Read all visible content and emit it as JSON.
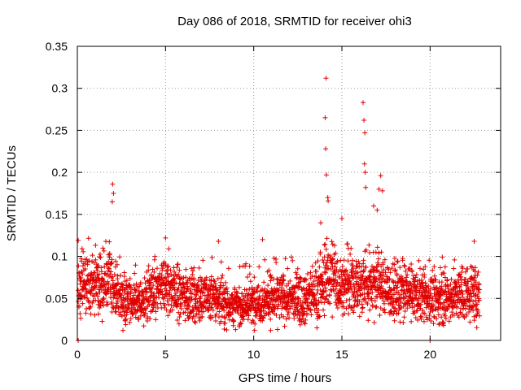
{
  "chart_data": {
    "type": "scatter",
    "title": "Day 086 of 2018, SRMTID for receiver ohi3",
    "xlabel": "GPS time / hours",
    "ylabel": "SRMTID / TECUs",
    "xlim": [
      0,
      24
    ],
    "ylim": [
      0,
      0.35
    ],
    "xticks": [
      0,
      5,
      10,
      15,
      20
    ],
    "xtick_labels": [
      "0",
      "5",
      "10",
      "15",
      "20"
    ],
    "yticks": [
      0,
      0.05,
      0.1,
      0.15,
      0.2,
      0.25,
      0.3,
      0.35
    ],
    "ytick_labels": [
      "0",
      "0.05",
      "0.1",
      "0.15",
      "0.2",
      "0.25",
      "0.3",
      "0.35"
    ],
    "grid": true,
    "marker": "+",
    "color": "#e00000",
    "sample_step_hours": 0.0167,
    "x_range": [
      0.05,
      22.8
    ],
    "baseline_level_by_hour": [
      [
        0.0,
        0.07
      ],
      [
        1.0,
        0.065
      ],
      [
        1.8,
        0.07
      ],
      [
        2.5,
        0.05
      ],
      [
        3.5,
        0.045
      ],
      [
        5.0,
        0.065
      ],
      [
        6.0,
        0.055
      ],
      [
        7.0,
        0.05
      ],
      [
        8.0,
        0.05
      ],
      [
        9.0,
        0.04
      ],
      [
        10.0,
        0.045
      ],
      [
        11.0,
        0.05
      ],
      [
        12.0,
        0.05
      ],
      [
        13.0,
        0.05
      ],
      [
        13.8,
        0.06
      ],
      [
        14.3,
        0.08
      ],
      [
        15.0,
        0.065
      ],
      [
        16.0,
        0.065
      ],
      [
        17.0,
        0.07
      ],
      [
        18.0,
        0.055
      ],
      [
        19.0,
        0.055
      ],
      [
        20.0,
        0.05
      ],
      [
        21.0,
        0.05
      ],
      [
        22.0,
        0.055
      ],
      [
        22.8,
        0.055
      ]
    ],
    "notable_points": [
      {
        "x": 2.0,
        "y": 0.186
      },
      {
        "x": 2.05,
        "y": 0.175
      },
      {
        "x": 1.98,
        "y": 0.165
      },
      {
        "x": 14.1,
        "y": 0.312
      },
      {
        "x": 14.05,
        "y": 0.265
      },
      {
        "x": 14.08,
        "y": 0.228
      },
      {
        "x": 14.12,
        "y": 0.197
      },
      {
        "x": 14.2,
        "y": 0.17
      },
      {
        "x": 14.22,
        "y": 0.166
      },
      {
        "x": 16.2,
        "y": 0.283
      },
      {
        "x": 16.25,
        "y": 0.262
      },
      {
        "x": 16.3,
        "y": 0.247
      },
      {
        "x": 16.28,
        "y": 0.21
      },
      {
        "x": 16.32,
        "y": 0.2
      },
      {
        "x": 16.35,
        "y": 0.182
      },
      {
        "x": 17.2,
        "y": 0.196
      },
      {
        "x": 17.1,
        "y": 0.18
      },
      {
        "x": 17.3,
        "y": 0.178
      },
      {
        "x": 17.0,
        "y": 0.155
      },
      {
        "x": 16.8,
        "y": 0.16
      },
      {
        "x": 15.0,
        "y": 0.145
      },
      {
        "x": 0.05,
        "y": 0.119
      },
      {
        "x": 5.0,
        "y": 0.122
      },
      {
        "x": 10.5,
        "y": 0.12
      },
      {
        "x": 22.5,
        "y": 0.118
      },
      {
        "x": 8.0,
        "y": 0.118
      },
      {
        "x": 13.8,
        "y": 0.14
      },
      {
        "x": 0.05,
        "y": 0.0
      },
      {
        "x": 20.0,
        "y": 0.0
      }
    ]
  }
}
